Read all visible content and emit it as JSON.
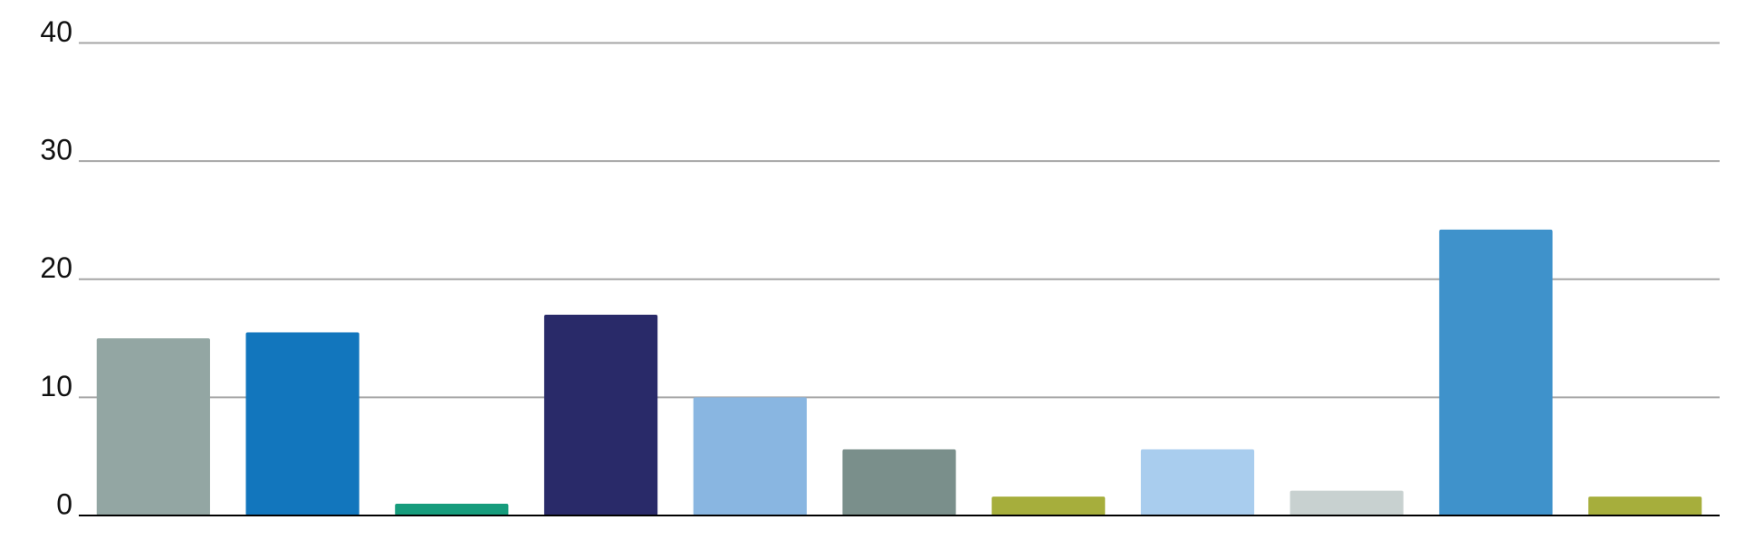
{
  "chart_data": {
    "type": "bar",
    "categories": [
      null,
      null,
      null,
      null,
      null,
      null,
      null,
      null,
      null,
      null,
      null
    ],
    "values": [
      15,
      15.5,
      1,
      17,
      10,
      5.6,
      1.6,
      5.6,
      2.1,
      24.2,
      1.6
    ],
    "colors": [
      "#93a6a3",
      "#1276bd",
      "#169c7c",
      "#292a69",
      "#89b6e1",
      "#7a8f8b",
      "#a6ae3c",
      "#a9cdee",
      "#c8d1d0",
      "#3f92cb",
      "#a6ae3c"
    ],
    "ylim": [
      0,
      40
    ],
    "yticks": [
      0,
      10,
      20,
      30,
      40
    ],
    "grid": true
  }
}
